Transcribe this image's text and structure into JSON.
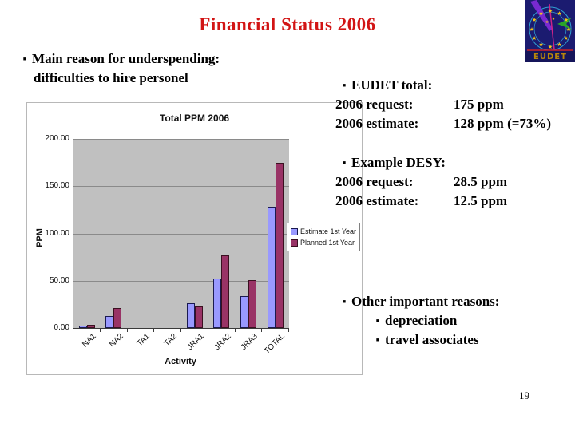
{
  "slide": {
    "title": "Financial Status 2006",
    "page_number": "19",
    "bullet": "▪",
    "title_color": "#d21414"
  },
  "left_note": {
    "line1": "Main reason for underspending:",
    "line2": "difficulties to hire personel"
  },
  "right": {
    "eudet": {
      "heading": "EUDET total:",
      "rows": [
        {
          "label": "2006 request:",
          "value": "175 ppm"
        },
        {
          "label": "2006 estimate:",
          "value": "128 ppm (=73%)"
        }
      ]
    },
    "desy": {
      "heading": "Example DESY:",
      "rows": [
        {
          "label": "2006 request:",
          "value": "28.5 ppm"
        },
        {
          "label": "2006 estimate:",
          "value": "12.5 ppm"
        }
      ]
    },
    "other": {
      "heading": "Other important reasons:",
      "items": [
        "depreciation",
        "travel associates"
      ]
    }
  },
  "logo": {
    "text": "EUDET"
  },
  "chart_data": {
    "type": "bar",
    "title": "Total PPM 2006",
    "xlabel": "Activity",
    "ylabel": "PPM",
    "categories": [
      "NA1",
      "NA2",
      "TA1",
      "TA2",
      "JRA1",
      "JRA2",
      "JRA3",
      "TOTAL"
    ],
    "series": [
      {
        "name": "Estimate 1st Year",
        "color": "#9999ff",
        "border": "#1a1a50",
        "values": [
          2.5,
          13,
          0,
          0,
          26,
          52,
          34,
          128
        ]
      },
      {
        "name": "Planned 1st Year",
        "color": "#993366",
        "border": "#3a1020",
        "values": [
          3.5,
          21,
          0,
          0,
          23,
          77,
          51,
          175
        ]
      }
    ],
    "ylim": [
      0,
      200
    ],
    "ytick_values": [
      0,
      50,
      100,
      150,
      200
    ],
    "grid": true,
    "legend_position": "right",
    "plot_bg": "#c0c0c0"
  }
}
